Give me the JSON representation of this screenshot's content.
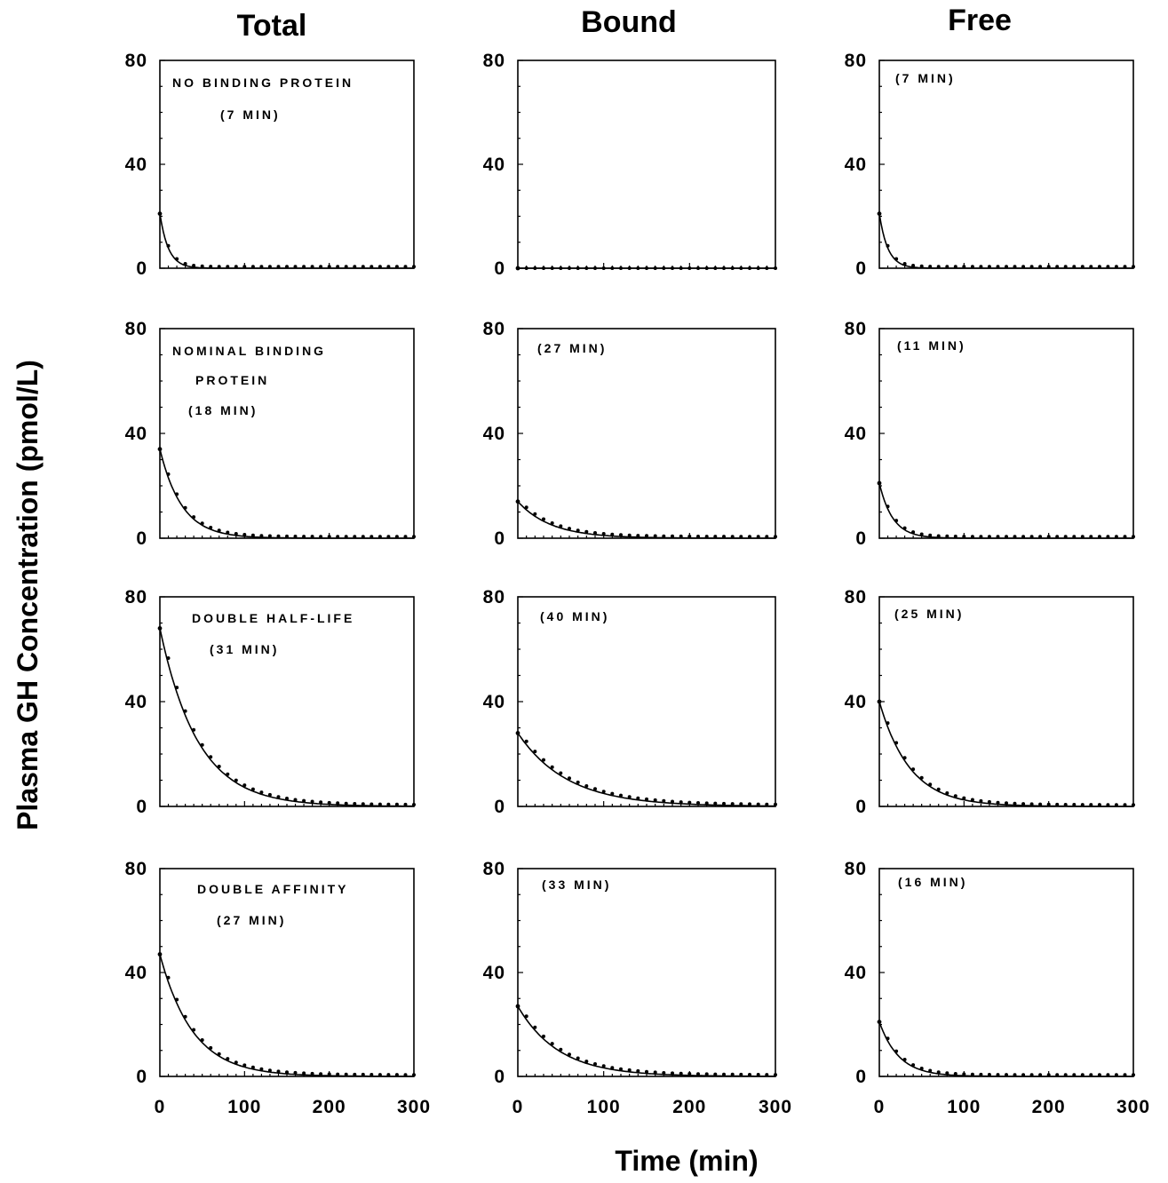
{
  "figure": {
    "column_titles": [
      "Total",
      "Bound",
      "Free"
    ],
    "ylabel": "Plasma GH Concentration (pmol/L)",
    "xlabel": "Time (min)"
  },
  "chart_data": [
    {
      "type": "line",
      "row": 1,
      "column": "Total",
      "annotations": [
        "NO BINDING PROTEIN",
        "(7 MIN)"
      ],
      "y0": 21,
      "half_life_min": 7,
      "xlim": [
        0,
        300
      ],
      "ylim": [
        0,
        80
      ],
      "xticks": [
        "0",
        "100",
        "200",
        "300"
      ],
      "yticks": [
        "0",
        "40",
        "80"
      ],
      "show_x_tick_labels": false,
      "series": [
        {
          "name": "",
          "kind": "fit-curve-with-points"
        }
      ]
    },
    {
      "type": "line",
      "row": 1,
      "column": "Bound",
      "annotations": [],
      "y0": 0,
      "half_life_min": 0,
      "xlim": [
        0,
        300
      ],
      "ylim": [
        0,
        80
      ],
      "xticks": [
        "0",
        "100",
        "200",
        "300"
      ],
      "yticks": [
        "0",
        "40",
        "80"
      ],
      "show_x_tick_labels": false,
      "series": [
        {
          "name": "",
          "kind": "fit-curve-with-points"
        }
      ]
    },
    {
      "type": "line",
      "row": 1,
      "column": "Free",
      "annotations": [
        "(7 MIN)"
      ],
      "y0": 21,
      "half_life_min": 7,
      "xlim": [
        0,
        300
      ],
      "ylim": [
        0,
        80
      ],
      "xticks": [
        "0",
        "100",
        "200",
        "300"
      ],
      "yticks": [
        "0",
        "40",
        "80"
      ],
      "show_x_tick_labels": false,
      "series": [
        {
          "name": "",
          "kind": "fit-curve-with-points"
        }
      ]
    },
    {
      "type": "line",
      "row": 2,
      "column": "Total",
      "annotations": [
        "NOMINAL BINDING",
        "PROTEIN",
        "(18 MIN)"
      ],
      "y0": 34,
      "half_life_min": 18,
      "xlim": [
        0,
        300
      ],
      "ylim": [
        0,
        80
      ],
      "xticks": [
        "0",
        "100",
        "200",
        "300"
      ],
      "yticks": [
        "0",
        "40",
        "80"
      ],
      "show_x_tick_labels": false,
      "series": [
        {
          "name": "",
          "kind": "fit-curve-with-points"
        }
      ]
    },
    {
      "type": "line",
      "row": 2,
      "column": "Bound",
      "annotations": [
        "(27 MIN)"
      ],
      "y0": 14,
      "half_life_min": 27,
      "xlim": [
        0,
        300
      ],
      "ylim": [
        0,
        80
      ],
      "xticks": [
        "0",
        "100",
        "200",
        "300"
      ],
      "yticks": [
        "0",
        "40",
        "80"
      ],
      "show_x_tick_labels": false,
      "series": [
        {
          "name": "",
          "kind": "fit-curve-with-points"
        }
      ]
    },
    {
      "type": "line",
      "row": 2,
      "column": "Free",
      "annotations": [
        "(11 MIN)"
      ],
      "y0": 21,
      "half_life_min": 11,
      "xlim": [
        0,
        300
      ],
      "ylim": [
        0,
        80
      ],
      "xticks": [
        "0",
        "100",
        "200",
        "300"
      ],
      "yticks": [
        "0",
        "40",
        "80"
      ],
      "show_x_tick_labels": false,
      "series": [
        {
          "name": "",
          "kind": "fit-curve-with-points"
        }
      ]
    },
    {
      "type": "line",
      "row": 3,
      "column": "Total",
      "annotations": [
        "DOUBLE HALF-LIFE",
        "(31 MIN)"
      ],
      "y0": 68,
      "half_life_min": 31,
      "xlim": [
        0,
        300
      ],
      "ylim": [
        0,
        80
      ],
      "xticks": [
        "0",
        "100",
        "200",
        "300"
      ],
      "yticks": [
        "0",
        "40",
        "80"
      ],
      "show_x_tick_labels": false,
      "series": [
        {
          "name": "",
          "kind": "fit-curve-with-points"
        }
      ]
    },
    {
      "type": "line",
      "row": 3,
      "column": "Bound",
      "annotations": [
        "(40 MIN)"
      ],
      "y0": 28,
      "half_life_min": 40,
      "xlim": [
        0,
        300
      ],
      "ylim": [
        0,
        80
      ],
      "xticks": [
        "0",
        "100",
        "200",
        "300"
      ],
      "yticks": [
        "0",
        "40",
        "80"
      ],
      "show_x_tick_labels": false,
      "series": [
        {
          "name": "",
          "kind": "fit-curve-with-points"
        }
      ]
    },
    {
      "type": "line",
      "row": 3,
      "column": "Free",
      "annotations": [
        "(25 MIN)"
      ],
      "y0": 40,
      "half_life_min": 25,
      "xlim": [
        0,
        300
      ],
      "ylim": [
        0,
        80
      ],
      "xticks": [
        "0",
        "100",
        "200",
        "300"
      ],
      "yticks": [
        "0",
        "40",
        "80"
      ],
      "show_x_tick_labels": false,
      "series": [
        {
          "name": "",
          "kind": "fit-curve-with-points"
        }
      ]
    },
    {
      "type": "line",
      "row": 4,
      "column": "Total",
      "annotations": [
        "DOUBLE AFFINITY",
        "(27 MIN)"
      ],
      "y0": 47,
      "half_life_min": 27,
      "xlim": [
        0,
        300
      ],
      "ylim": [
        0,
        80
      ],
      "xticks": [
        "0",
        "100",
        "200",
        "300"
      ],
      "yticks": [
        "0",
        "40",
        "80"
      ],
      "show_x_tick_labels": true,
      "series": [
        {
          "name": "",
          "kind": "fit-curve-with-points"
        }
      ]
    },
    {
      "type": "line",
      "row": 4,
      "column": "Bound",
      "annotations": [
        "(33 MIN)"
      ],
      "y0": 27,
      "half_life_min": 33,
      "xlim": [
        0,
        300
      ],
      "ylim": [
        0,
        80
      ],
      "xticks": [
        "0",
        "100",
        "200",
        "300"
      ],
      "yticks": [
        "0",
        "40",
        "80"
      ],
      "show_x_tick_labels": true,
      "series": [
        {
          "name": "",
          "kind": "fit-curve-with-points"
        }
      ]
    },
    {
      "type": "line",
      "row": 4,
      "column": "Free",
      "annotations": [
        "(16 MIN)"
      ],
      "y0": 21,
      "half_life_min": 16,
      "xlim": [
        0,
        300
      ],
      "ylim": [
        0,
        80
      ],
      "xticks": [
        "0",
        "100",
        "200",
        "300"
      ],
      "yticks": [
        "0",
        "40",
        "80"
      ],
      "show_x_tick_labels": true,
      "series": [
        {
          "name": "",
          "kind": "fit-curve-with-points"
        }
      ]
    }
  ]
}
